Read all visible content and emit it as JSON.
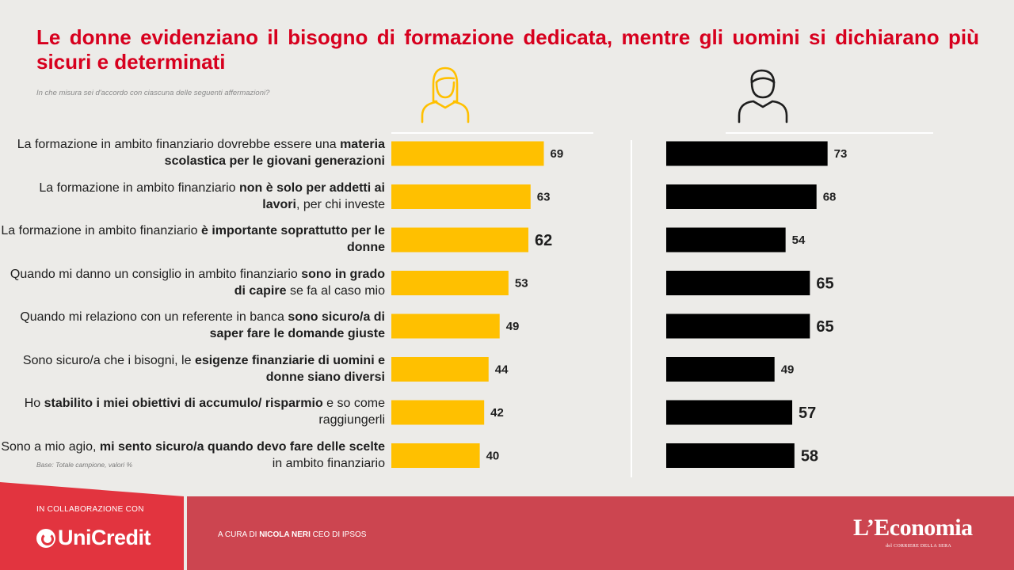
{
  "title": "Le donne evidenziano il bisogno di formazione dedicata, mentre gli uomini si dichiarano più sicuri e determinati",
  "question": "In che misura sei d'accordo con ciascuna delle seguenti affermazioni?",
  "base": "Base: Totale campione,  valori %",
  "icons": {
    "women": "woman-icon",
    "men": "man-icon"
  },
  "statements": [
    {
      "parts": [
        {
          "t": "La formazione in ambito finanziario dovrebbe essere una ",
          "b": false
        },
        {
          "t": "materia scolastica per le giovani generazioni",
          "b": true
        }
      ]
    },
    {
      "parts": [
        {
          "t": "La formazione in ambito finanziario ",
          "b": false
        },
        {
          "t": "non è solo per addetti ai lavori",
          "b": true
        },
        {
          "t": ", per chi investe",
          "b": false
        }
      ]
    },
    {
      "parts": [
        {
          "t": "La formazione in ambito finanziario ",
          "b": false
        },
        {
          "t": "è importante soprattutto per le donne",
          "b": true
        }
      ]
    },
    {
      "parts": [
        {
          "t": "Quando mi danno un consiglio in ambito finanziario ",
          "b": false
        },
        {
          "t": "sono in grado di capire",
          "b": true
        },
        {
          "t": " se fa al caso mio",
          "b": false
        }
      ]
    },
    {
      "parts": [
        {
          "t": "Quando mi relaziono con un referente in banca ",
          "b": false
        },
        {
          "t": "sono sicuro/a di saper fare le domande giuste",
          "b": true
        }
      ]
    },
    {
      "parts": [
        {
          "t": "Sono sicuro/a che i bisogni, le ",
          "b": false
        },
        {
          "t": "esigenze finanziarie di uomini e donne siano diversi",
          "b": true
        }
      ]
    },
    {
      "parts": [
        {
          "t": "Ho ",
          "b": false
        },
        {
          "t": "stabilito i miei obiettivi di accumulo/ risparmio",
          "b": true
        },
        {
          "t": " e so come raggiungerli",
          "b": false
        }
      ]
    },
    {
      "parts": [
        {
          "t": "Sono a mio agio, ",
          "b": false
        },
        {
          "t": "mi sento sicuro/a quando devo fare delle scelte",
          "b": true
        },
        {
          "t": " in ambito finanziario",
          "b": false
        }
      ]
    }
  ],
  "chart_data": {
    "type": "bar",
    "orientation": "horizontal",
    "categories": [
      "La formazione in ambito finanziario dovrebbe essere una materia scolastica per le giovani generazioni",
      "La formazione in ambito finanziario non è solo per addetti ai lavori, per chi investe",
      "La formazione in ambito finanziario è importante soprattutto per le donne",
      "Quando mi danno un consiglio in ambito finanziario sono in grado di capire se fa al caso mio",
      "Quando mi relaziono con un referente in banca sono sicuro/a di saper fare le domande giuste",
      "Sono sicuro/a che i bisogni, le esigenze finanziarie di uomini e donne siano diversi",
      "Ho stabilito i miei obiettivi di accumulo/ risparmio e so come raggiungerli",
      "Sono a mio agio, mi sento sicuro/a quando devo fare delle scelte in ambito finanziario"
    ],
    "series": [
      {
        "color": "#ffc000",
        "values": [
          69,
          63,
          62,
          53,
          49,
          44,
          42,
          40
        ],
        "emphasized": [
          false,
          false,
          true,
          false,
          false,
          false,
          false,
          false
        ]
      },
      {
        "color": "#000000",
        "values": [
          73,
          68,
          54,
          65,
          65,
          49,
          57,
          58
        ],
        "emphasized": [
          false,
          false,
          false,
          true,
          true,
          false,
          true,
          true
        ]
      }
    ],
    "xlim": [
      0,
      100
    ],
    "grid": false,
    "legend": "none"
  },
  "footer": {
    "collab": "IN COLLABORAZIONE CON",
    "partner": "UniCredit",
    "credit_prefix": "A CURA DI ",
    "credit_name": "NICOLA NERI",
    "credit_suffix": " CEO DI IPSOS",
    "brand": "L’Economia",
    "brand_sub": "del CORRIERE DELLA SERA"
  }
}
